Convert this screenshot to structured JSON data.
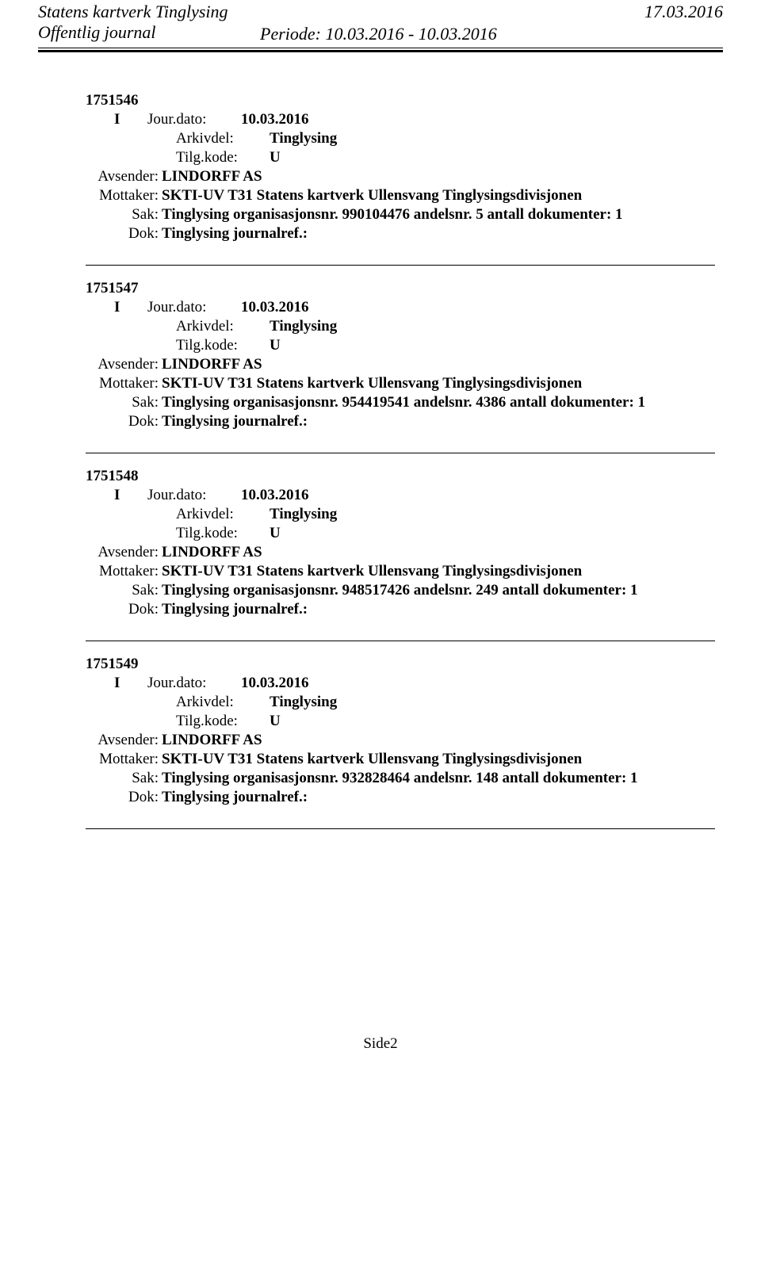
{
  "header": {
    "title": "Statens kartverk Tinglysing",
    "date": "17.03.2016",
    "subtitle": "Offentlig journal",
    "period_label": "Periode: 10.03.2016 - 10.03.2016"
  },
  "labels": {
    "jourdato": "Jour.dato:",
    "arkivdel": "Arkivdel:",
    "tilgkode": "Tilg.kode:",
    "avsender": "Avsender:",
    "mottaker": "Mottaker:",
    "sak": "Sak:",
    "dok": "Dok:"
  },
  "entries": [
    {
      "id": "1751546",
      "io": "I",
      "jourdato": "10.03.2016",
      "arkivdel": "Tinglysing",
      "tilgkode": "U",
      "avsender": "LINDORFF AS",
      "mottaker": "SKTI-UV T31 Statens kartverk Ullensvang Tinglysingsdivisjonen",
      "sak": "Tinglysing organisasjonsnr. 990104476 andelsnr. 5 antall dokumenter: 1",
      "dok": "Tinglysing journalref.:"
    },
    {
      "id": "1751547",
      "io": "I",
      "jourdato": "10.03.2016",
      "arkivdel": "Tinglysing",
      "tilgkode": "U",
      "avsender": "LINDORFF AS",
      "mottaker": "SKTI-UV T31 Statens kartverk Ullensvang Tinglysingsdivisjonen",
      "sak": "Tinglysing organisasjonsnr. 954419541 andelsnr. 4386 antall dokumenter: 1",
      "dok": "Tinglysing journalref.:"
    },
    {
      "id": "1751548",
      "io": "I",
      "jourdato": "10.03.2016",
      "arkivdel": "Tinglysing",
      "tilgkode": "U",
      "avsender": "LINDORFF AS",
      "mottaker": "SKTI-UV T31 Statens kartverk Ullensvang Tinglysingsdivisjonen",
      "sak": "Tinglysing organisasjonsnr. 948517426 andelsnr. 249 antall dokumenter: 1",
      "dok": "Tinglysing journalref.:"
    },
    {
      "id": "1751549",
      "io": "I",
      "jourdato": "10.03.2016",
      "arkivdel": "Tinglysing",
      "tilgkode": "U",
      "avsender": "LINDORFF AS",
      "mottaker": "SKTI-UV T31 Statens kartverk Ullensvang Tinglysingsdivisjonen",
      "sak": "Tinglysing organisasjonsnr. 932828464 andelsnr. 148 antall dokumenter: 1",
      "dok": "Tinglysing journalref.:"
    }
  ],
  "page_num": "Side2"
}
